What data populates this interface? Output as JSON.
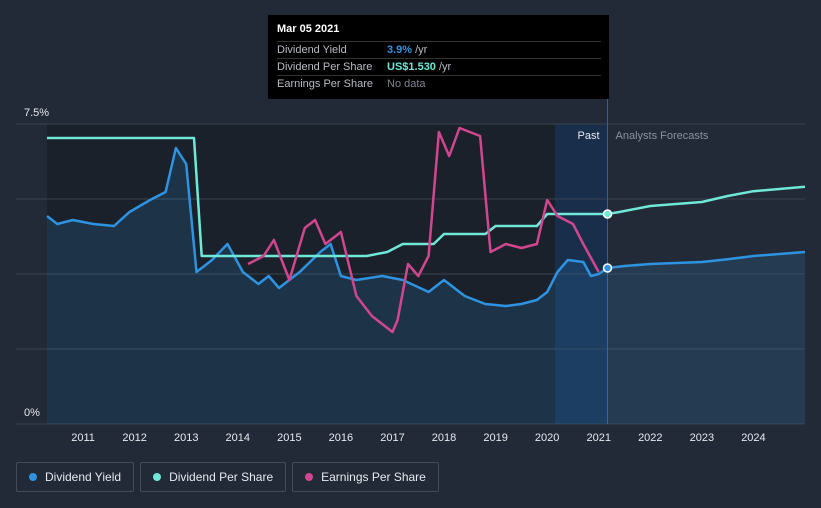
{
  "tooltip": {
    "date": "Mar 05 2021",
    "rows": [
      {
        "name": "Dividend Yield",
        "value": "3.9%",
        "unit": "/yr",
        "color": "#2e93e0"
      },
      {
        "name": "Dividend Per Share",
        "value": "US$1.530",
        "unit": "/yr",
        "color": "#6fe8d8"
      },
      {
        "name": "Earnings Per Share",
        "value": "No data",
        "unit": "",
        "color": "#7e8590"
      }
    ]
  },
  "regions": {
    "past": "Past",
    "forecast": "Analysts Forecasts"
  },
  "legend": [
    {
      "label": "Dividend Yield",
      "color": "#2e93e0"
    },
    {
      "label": "Dividend Per Share",
      "color": "#6fe8d8"
    },
    {
      "label": "Earnings Per Share",
      "color": "#d0478f"
    }
  ],
  "chart_data": {
    "type": "line",
    "xlim": [
      2010.3,
      2025.0
    ],
    "ylim": [
      0,
      7.5
    ],
    "y_tick_labels": [
      {
        "value": 7.5,
        "label": "7.5%"
      },
      {
        "value": 0,
        "label": "0%"
      }
    ],
    "x_ticks": [
      2011,
      2012,
      2013,
      2014,
      2015,
      2016,
      2017,
      2018,
      2019,
      2020,
      2021,
      2022,
      2023,
      2024
    ],
    "past_end": 2021.17,
    "forecast_start": 2020.15,
    "grid": true,
    "series": [
      {
        "name": "Dividend Yield",
        "color": "#2e93e0",
        "area": true,
        "points": [
          [
            2010.3,
            5.2
          ],
          [
            2010.5,
            5.0
          ],
          [
            2010.8,
            5.1
          ],
          [
            2011.2,
            5.0
          ],
          [
            2011.6,
            4.95
          ],
          [
            2011.9,
            5.3
          ],
          [
            2012.3,
            5.6
          ],
          [
            2012.6,
            5.8
          ],
          [
            2012.8,
            6.9
          ],
          [
            2013.0,
            6.5
          ],
          [
            2013.2,
            3.8
          ],
          [
            2013.5,
            4.1
          ],
          [
            2013.8,
            4.5
          ],
          [
            2014.1,
            3.8
          ],
          [
            2014.4,
            3.5
          ],
          [
            2014.6,
            3.7
          ],
          [
            2014.8,
            3.4
          ],
          [
            2015.2,
            3.8
          ],
          [
            2015.6,
            4.3
          ],
          [
            2015.8,
            4.5
          ],
          [
            2016.0,
            3.7
          ],
          [
            2016.3,
            3.6
          ],
          [
            2016.8,
            3.7
          ],
          [
            2017.2,
            3.6
          ],
          [
            2017.7,
            3.3
          ],
          [
            2018.0,
            3.6
          ],
          [
            2018.4,
            3.2
          ],
          [
            2018.8,
            3.0
          ],
          [
            2019.2,
            2.95
          ],
          [
            2019.5,
            3.0
          ],
          [
            2019.8,
            3.1
          ],
          [
            2020.0,
            3.3
          ],
          [
            2020.2,
            3.8
          ],
          [
            2020.4,
            4.1
          ],
          [
            2020.7,
            4.05
          ],
          [
            2020.85,
            3.7
          ],
          [
            2021.0,
            3.75
          ],
          [
            2021.17,
            3.9
          ],
          [
            2021.5,
            3.95
          ],
          [
            2022.0,
            4.0
          ],
          [
            2023.0,
            4.05
          ],
          [
            2023.5,
            4.12
          ],
          [
            2024.0,
            4.2
          ],
          [
            2025.0,
            4.3
          ]
        ]
      },
      {
        "name": "Dividend Per Share",
        "color": "#6fe8d8",
        "area": false,
        "points": [
          [
            2010.3,
            7.15
          ],
          [
            2013.15,
            7.15
          ],
          [
            2013.3,
            4.2
          ],
          [
            2016.5,
            4.2
          ],
          [
            2016.9,
            4.3
          ],
          [
            2017.2,
            4.5
          ],
          [
            2017.8,
            4.5
          ],
          [
            2018.0,
            4.75
          ],
          [
            2018.8,
            4.75
          ],
          [
            2019.0,
            4.95
          ],
          [
            2019.8,
            4.95
          ],
          [
            2020.0,
            5.25
          ],
          [
            2021.17,
            5.25
          ],
          [
            2021.4,
            5.3
          ],
          [
            2022.0,
            5.45
          ],
          [
            2022.5,
            5.5
          ],
          [
            2023.0,
            5.55
          ],
          [
            2023.5,
            5.7
          ],
          [
            2024.0,
            5.82
          ],
          [
            2025.0,
            5.93
          ]
        ]
      },
      {
        "name": "Earnings Per Share",
        "color": "#d0478f",
        "area": false,
        "points": [
          [
            2014.2,
            4.0
          ],
          [
            2014.5,
            4.2
          ],
          [
            2014.7,
            4.6
          ],
          [
            2015.0,
            3.6
          ],
          [
            2015.3,
            4.9
          ],
          [
            2015.5,
            5.1
          ],
          [
            2015.7,
            4.5
          ],
          [
            2016.0,
            4.8
          ],
          [
            2016.3,
            3.2
          ],
          [
            2016.6,
            2.7
          ],
          [
            2016.9,
            2.4
          ],
          [
            2017.0,
            2.3
          ],
          [
            2017.1,
            2.6
          ],
          [
            2017.3,
            4.0
          ],
          [
            2017.5,
            3.7
          ],
          [
            2017.7,
            4.2
          ],
          [
            2017.9,
            7.3
          ],
          [
            2018.1,
            6.7
          ],
          [
            2018.3,
            7.4
          ],
          [
            2018.5,
            7.3
          ],
          [
            2018.7,
            7.2
          ],
          [
            2018.9,
            4.3
          ],
          [
            2019.2,
            4.5
          ],
          [
            2019.5,
            4.4
          ],
          [
            2019.8,
            4.5
          ],
          [
            2020.0,
            5.6
          ],
          [
            2020.2,
            5.2
          ],
          [
            2020.5,
            5.0
          ],
          [
            2020.7,
            4.5
          ],
          [
            2021.0,
            3.8
          ]
        ]
      }
    ],
    "markers": [
      {
        "series": "Dividend Yield",
        "x": 2021.17,
        "y": 3.9
      },
      {
        "series": "Dividend Per Share",
        "x": 2021.17,
        "y": 5.25
      }
    ]
  }
}
